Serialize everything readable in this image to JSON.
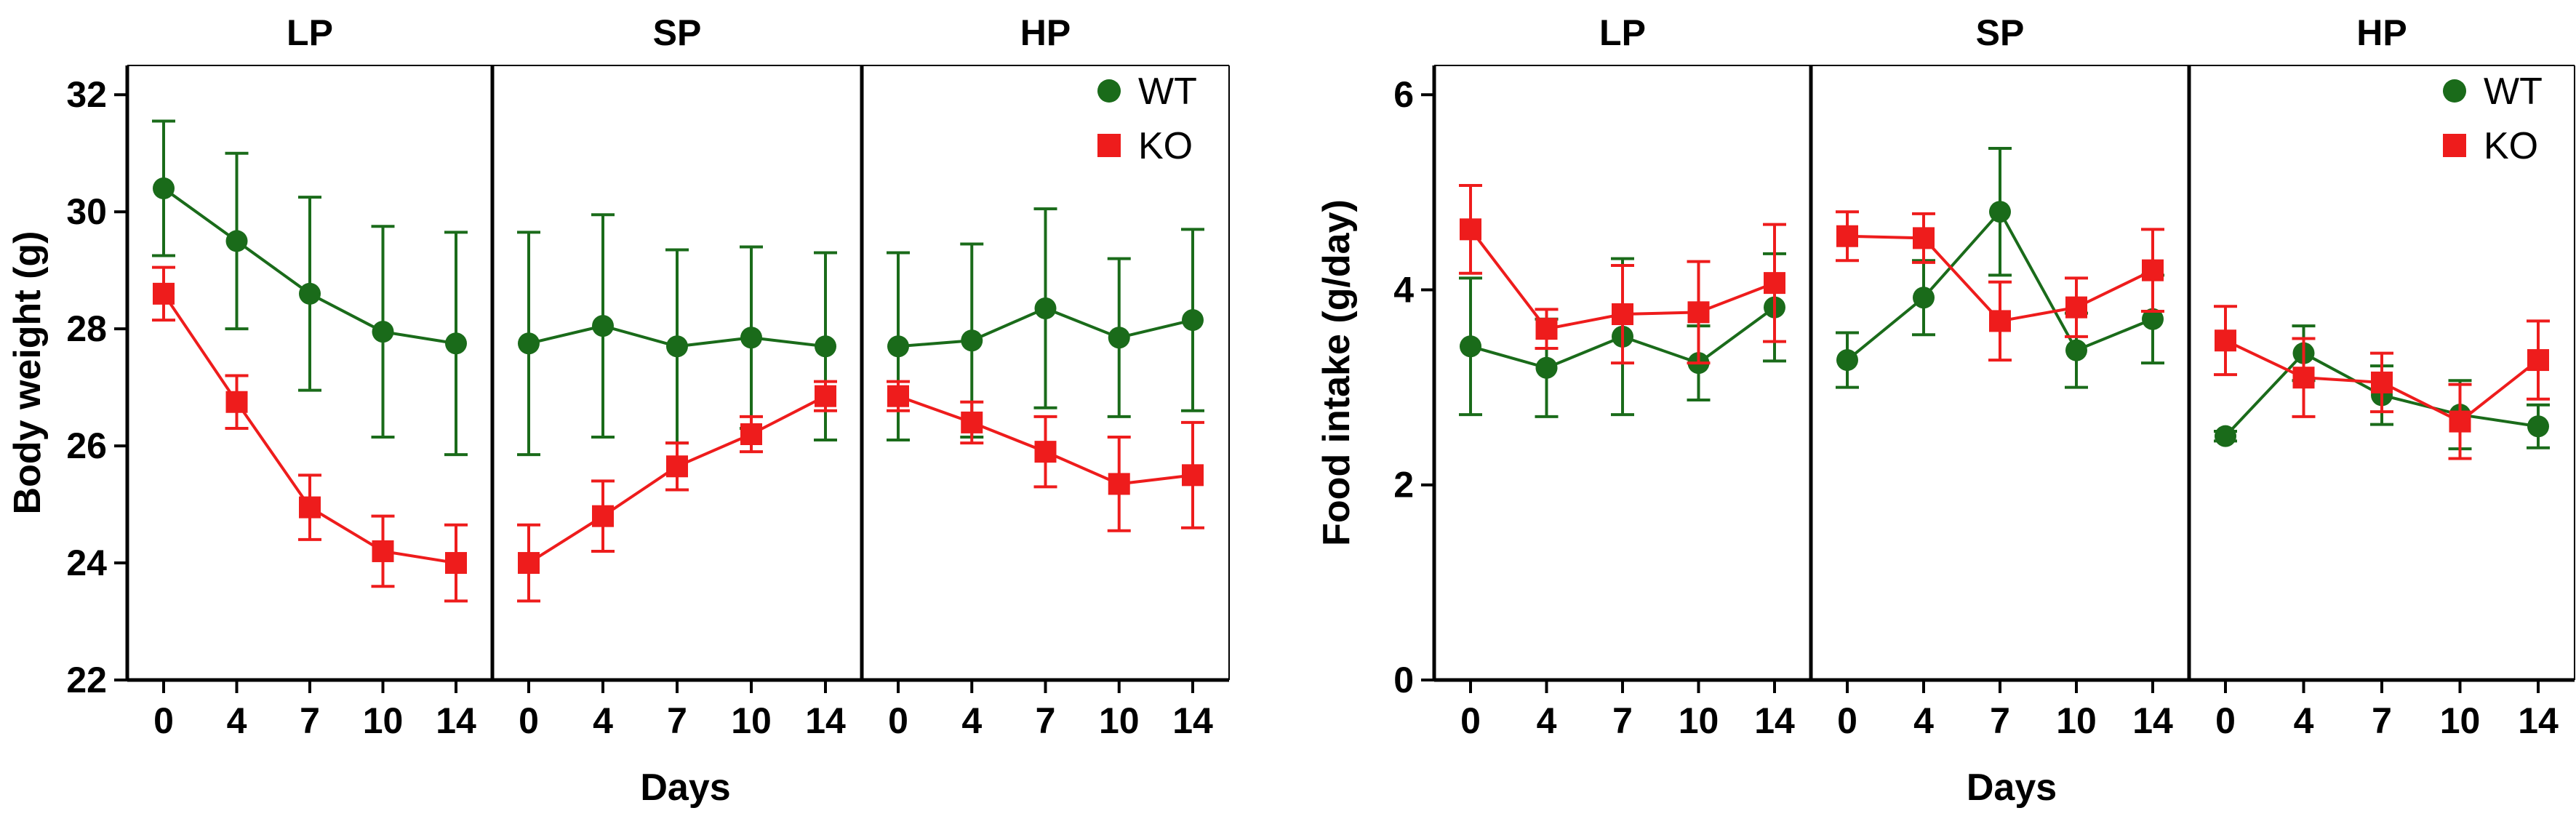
{
  "chart_data": [
    {
      "type": "line",
      "ylabel": "Body weight (g)",
      "xlabel": "Days",
      "ylim": [
        22,
        32.5
      ],
      "yticks": [
        22,
        24,
        26,
        28,
        30,
        32
      ],
      "ytick_labels": [
        "22",
        "24",
        "26",
        "28",
        "30",
        "32"
      ],
      "panels": [
        {
          "label": "LP",
          "x": [
            "0",
            "4",
            "7",
            "10",
            "14"
          ]
        },
        {
          "label": "SP",
          "x": [
            "0",
            "4",
            "7",
            "10",
            "14"
          ]
        },
        {
          "label": "HP",
          "x": [
            "0",
            "4",
            "7",
            "10",
            "14"
          ]
        }
      ],
      "legend": [
        "WT",
        "KO"
      ],
      "legend_position": "top-right",
      "series": [
        {
          "name": "WT",
          "color": "#1a6b1a",
          "marker": "circle",
          "values": [
            [
              30.4,
              29.5,
              28.6,
              27.95,
              27.75
            ],
            [
              27.75,
              28.05,
              27.7,
              27.85,
              27.7
            ],
            [
              27.7,
              27.8,
              28.35,
              27.85,
              28.15
            ]
          ],
          "errors": [
            [
              1.15,
              1.5,
              1.65,
              1.8,
              1.9
            ],
            [
              1.9,
              1.9,
              1.65,
              1.55,
              1.6
            ],
            [
              1.6,
              1.65,
              1.7,
              1.35,
              1.55
            ]
          ]
        },
        {
          "name": "KO",
          "color": "#ee1c1c",
          "marker": "square",
          "values": [
            [
              28.6,
              26.75,
              24.95,
              24.2,
              24.0
            ],
            [
              24.0,
              24.8,
              25.65,
              26.2,
              26.85
            ],
            [
              26.85,
              26.4,
              25.9,
              25.35,
              25.5
            ]
          ],
          "errors": [
            [
              0.45,
              0.45,
              0.55,
              0.6,
              0.65
            ],
            [
              0.65,
              0.6,
              0.4,
              0.3,
              0.25
            ],
            [
              0.25,
              0.35,
              0.6,
              0.8,
              0.9
            ]
          ]
        }
      ]
    },
    {
      "type": "line",
      "ylabel": "Food intake (g/day)",
      "xlabel": "Days",
      "ylim": [
        0,
        6.3
      ],
      "yticks": [
        0,
        2,
        4,
        6
      ],
      "ytick_labels": [
        "0",
        "2",
        "4",
        "6"
      ],
      "panels": [
        {
          "label": "LP",
          "x": [
            "0",
            "4",
            "7",
            "10",
            "14"
          ]
        },
        {
          "label": "SP",
          "x": [
            "0",
            "4",
            "7",
            "10",
            "14"
          ]
        },
        {
          "label": "HP",
          "x": [
            "0",
            "4",
            "7",
            "10",
            "14"
          ]
        }
      ],
      "legend": [
        "WT",
        "KO"
      ],
      "legend_position": "top-right",
      "series": [
        {
          "name": "WT",
          "color": "#1a6b1a",
          "marker": "circle",
          "values": [
            [
              3.42,
              3.2,
              3.52,
              3.25,
              3.82
            ],
            [
              3.28,
              3.92,
              4.8,
              3.38,
              3.7
            ],
            [
              2.5,
              3.35,
              2.92,
              2.72,
              2.6
            ]
          ],
          "errors": [
            [
              0.7,
              0.5,
              0.8,
              0.38,
              0.55
            ],
            [
              0.28,
              0.38,
              0.65,
              0.38,
              0.45
            ],
            [
              0.05,
              0.28,
              0.3,
              0.35,
              0.22
            ]
          ]
        },
        {
          "name": "KO",
          "color": "#ee1c1c",
          "marker": "square",
          "values": [
            [
              4.62,
              3.6,
              3.75,
              3.77,
              4.07
            ],
            [
              4.55,
              4.53,
              3.68,
              3.82,
              4.2
            ],
            [
              3.48,
              3.1,
              3.05,
              2.65,
              3.28
            ]
          ],
          "errors": [
            [
              0.45,
              0.2,
              0.5,
              0.52,
              0.6
            ],
            [
              0.25,
              0.25,
              0.4,
              0.3,
              0.42
            ],
            [
              0.35,
              0.4,
              0.3,
              0.38,
              0.4
            ]
          ]
        }
      ]
    }
  ]
}
